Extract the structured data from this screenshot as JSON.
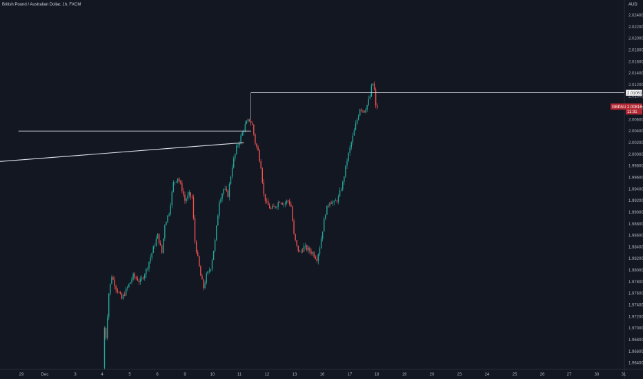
{
  "header": {
    "symbol_title": "British Pound / Australian Dollar, 1h, FXCM",
    "currency": "AUD"
  },
  "colors": {
    "background": "#131722",
    "up": "#26a69a",
    "down": "#ef5350",
    "wick": "#b2b5be",
    "line": "#e0e3eb",
    "price_tag": "#b22833"
  },
  "chart_data": {
    "type": "candlestick",
    "title": "",
    "xlabel": "",
    "ylabel": "",
    "ylim": [
      1.9632,
      2.0255
    ],
    "y_ticks": [
      "2.02400",
      "2.02200",
      "2.02000",
      "2.01800",
      "2.01600",
      "2.01400",
      "2.01200",
      "2.01000",
      "2.00800",
      "2.00600",
      "2.00400",
      "2.00200",
      "2.00000",
      "1.99800",
      "1.99600",
      "1.99400",
      "1.99200",
      "1.99000",
      "1.98800",
      "1.98600",
      "1.98400",
      "1.98200",
      "1.98000",
      "1.97800",
      "1.97600",
      "1.97400",
      "1.97200",
      "1.97000",
      "1.96800",
      "1.96600",
      "1.96400"
    ],
    "x_ticks": [
      "29",
      "Dec",
      "3",
      "4",
      "5",
      "6",
      "9",
      "10",
      "11",
      "12",
      "13",
      "16",
      "17",
      "18",
      "19",
      "20",
      "23",
      "24",
      "25",
      "26",
      "27",
      "30",
      "31"
    ],
    "price_anchors": [
      {
        "t": 0,
        "p": 1.9632
      },
      {
        "t": 1,
        "p": 1.97
      },
      {
        "t": 2,
        "p": 1.9685
      },
      {
        "t": 4,
        "p": 1.976
      },
      {
        "t": 6,
        "p": 1.979
      },
      {
        "t": 9,
        "p": 1.977
      },
      {
        "t": 13,
        "p": 1.975
      },
      {
        "t": 17,
        "p": 1.977
      },
      {
        "t": 21,
        "p": 1.979
      },
      {
        "t": 26,
        "p": 1.978
      },
      {
        "t": 30,
        "p": 1.98
      },
      {
        "t": 34,
        "p": 1.983
      },
      {
        "t": 38,
        "p": 1.986
      },
      {
        "t": 41,
        "p": 1.983
      },
      {
        "t": 43,
        "p": 1.988
      },
      {
        "t": 46,
        "p": 1.99
      },
      {
        "t": 49,
        "p": 1.995
      },
      {
        "t": 52,
        "p": 1.996
      },
      {
        "t": 55,
        "p": 1.994
      },
      {
        "t": 57,
        "p": 1.992
      },
      {
        "t": 60,
        "p": 1.993
      },
      {
        "t": 62,
        "p": 1.9925
      },
      {
        "t": 64,
        "p": 1.985
      },
      {
        "t": 66,
        "p": 1.982
      },
      {
        "t": 68,
        "p": 1.979
      },
      {
        "t": 70,
        "p": 1.977
      },
      {
        "t": 72,
        "p": 1.979
      },
      {
        "t": 75,
        "p": 1.9805
      },
      {
        "t": 78,
        "p": 1.985
      },
      {
        "t": 81,
        "p": 1.992
      },
      {
        "t": 84,
        "p": 1.994
      },
      {
        "t": 87,
        "p": 1.993
      },
      {
        "t": 90,
        "p": 1.998
      },
      {
        "t": 93,
        "p": 2.001
      },
      {
        "t": 96,
        "p": 2.003
      },
      {
        "t": 99,
        "p": 2.005
      },
      {
        "t": 102,
        "p": 2.006
      },
      {
        "t": 104,
        "p": 2.005
      },
      {
        "t": 106,
        "p": 2.002
      },
      {
        "t": 108,
        "p": 2.0005
      },
      {
        "t": 110,
        "p": 1.998
      },
      {
        "t": 112,
        "p": 1.993
      },
      {
        "t": 114,
        "p": 1.9915
      },
      {
        "t": 117,
        "p": 1.9905
      },
      {
        "t": 120,
        "p": 1.991
      },
      {
        "t": 123,
        "p": 1.992
      },
      {
        "t": 126,
        "p": 1.9915
      },
      {
        "t": 129,
        "p": 1.992
      },
      {
        "t": 131,
        "p": 1.991
      },
      {
        "t": 133,
        "p": 1.986
      },
      {
        "t": 135,
        "p": 1.984
      },
      {
        "t": 137,
        "p": 1.983
      },
      {
        "t": 140,
        "p": 1.984
      },
      {
        "t": 143,
        "p": 1.9835
      },
      {
        "t": 146,
        "p": 1.983
      },
      {
        "t": 149,
        "p": 1.982
      },
      {
        "t": 151,
        "p": 1.984
      },
      {
        "t": 153,
        "p": 1.987
      },
      {
        "t": 155,
        "p": 1.99
      },
      {
        "t": 158,
        "p": 1.992
      },
      {
        "t": 161,
        "p": 1.9915
      },
      {
        "t": 164,
        "p": 1.9925
      },
      {
        "t": 167,
        "p": 1.995
      },
      {
        "t": 170,
        "p": 1.999
      },
      {
        "t": 173,
        "p": 2.002
      },
      {
        "t": 176,
        "p": 2.005
      },
      {
        "t": 179,
        "p": 2.008
      },
      {
        "t": 182,
        "p": 2.0075
      },
      {
        "t": 184,
        "p": 2.0085
      },
      {
        "t": 186,
        "p": 2.01
      },
      {
        "t": 187,
        "p": 2.0115
      },
      {
        "t": 188,
        "p": 2.0122
      },
      {
        "t": 189,
        "p": 2.011
      },
      {
        "t": 190,
        "p": 2.0082
      }
    ],
    "horizontal_lines": [
      {
        "price": 2.01061,
        "from_t": 102
      },
      {
        "price": 2.004,
        "from_t": -60,
        "to_t": 102
      }
    ],
    "trend_line": {
      "t1": -60,
      "p1": 1.999,
      "t2": 97,
      "p2": 2.002
    },
    "last_price_tag": {
      "symbol": "GBPAUD",
      "price": "2.00816",
      "countdown": "11:31"
    },
    "level_tag": "2.01061"
  }
}
